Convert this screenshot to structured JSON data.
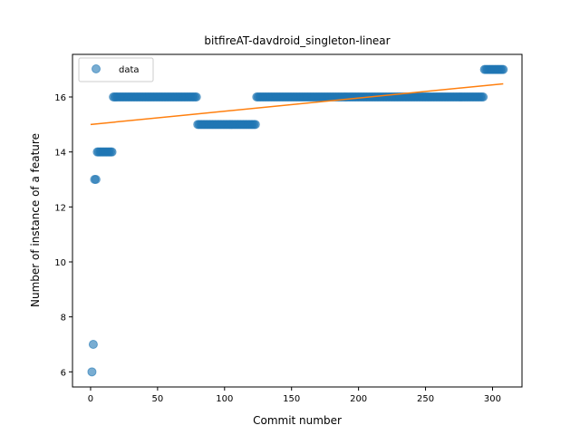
{
  "chart_data": {
    "type": "scatter",
    "title": "bitfireAT-davdroid_singleton-linear",
    "xlabel": "Commit number",
    "ylabel": "Number of instance of a feature",
    "xlim": [
      -13.5,
      322
    ],
    "ylim": [
      5.45,
      17.55
    ],
    "xticks": [
      0,
      50,
      100,
      150,
      200,
      250,
      300
    ],
    "yticks": [
      6,
      8,
      10,
      12,
      14,
      16
    ],
    "grid": false,
    "legend": {
      "placement": "upper-left",
      "entries": [
        "data"
      ]
    },
    "series": [
      {
        "name": "data",
        "kind": "scatter",
        "color": "#1f77b4",
        "segments": [
          {
            "x_from": 1,
            "x_to": 1,
            "y": 6
          },
          {
            "x_from": 2,
            "x_to": 2,
            "y": 7
          },
          {
            "x_from": 3,
            "x_to": 4,
            "y": 13
          },
          {
            "x_from": 5,
            "x_to": 16,
            "y": 14
          },
          {
            "x_from": 17,
            "x_to": 79,
            "y": 16
          },
          {
            "x_from": 80,
            "x_to": 123,
            "y": 15
          },
          {
            "x_from": 124,
            "x_to": 293,
            "y": 16
          },
          {
            "x_from": 294,
            "x_to": 308,
            "y": 17
          }
        ]
      },
      {
        "kind": "line",
        "color": "#ff7f0e",
        "x": [
          0,
          308
        ],
        "y": [
          15.0,
          16.48
        ]
      }
    ]
  }
}
